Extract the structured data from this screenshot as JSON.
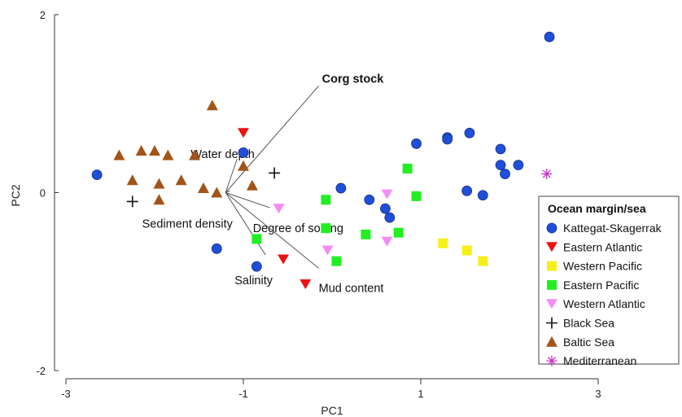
{
  "chart_data": {
    "type": "scatter",
    "xlabel": "PC1",
    "ylabel": "PC2",
    "xlim": [
      -3.0,
      3.0
    ],
    "ylim": [
      -2.0,
      2.0
    ],
    "xticks": [
      -3,
      -1,
      1,
      3
    ],
    "yticks": [
      -2,
      0,
      2
    ],
    "grid": false,
    "legend": {
      "title": "Ocean margin/sea",
      "placement": "right"
    },
    "series": [
      {
        "name": "Kattegat-Skagerrak",
        "marker": "circle",
        "color": "#1f4fd8",
        "points": [
          [
            -2.65,
            0.2
          ],
          [
            -1.0,
            0.45
          ],
          [
            -1.3,
            -0.63
          ],
          [
            -0.85,
            -0.83
          ],
          [
            0.1,
            0.05
          ],
          [
            0.42,
            -0.08
          ],
          [
            0.6,
            -0.18
          ],
          [
            0.65,
            -0.28
          ],
          [
            0.95,
            0.55
          ],
          [
            1.3,
            0.62
          ],
          [
            1.3,
            0.6
          ],
          [
            1.55,
            0.67
          ],
          [
            1.52,
            0.02
          ],
          [
            1.7,
            -0.03
          ],
          [
            1.9,
            0.49
          ],
          [
            1.9,
            0.31
          ],
          [
            1.95,
            0.21
          ],
          [
            2.1,
            0.31
          ],
          [
            2.45,
            1.75
          ]
        ]
      },
      {
        "name": "Eastern Atlantic",
        "marker": "triangle-down",
        "color": "#ee1111",
        "points": [
          [
            -1.0,
            0.67
          ],
          [
            -0.55,
            -0.75
          ],
          [
            -0.3,
            -1.03
          ]
        ]
      },
      {
        "name": "Western Pacific",
        "marker": "square",
        "color": "#f5f01a",
        "points": [
          [
            1.25,
            -0.57
          ],
          [
            1.52,
            -0.65
          ],
          [
            1.7,
            -0.77
          ]
        ]
      },
      {
        "name": "Eastern Pacific",
        "marker": "square",
        "color": "#22ee22",
        "points": [
          [
            -0.85,
            -0.52
          ],
          [
            -0.07,
            -0.08
          ],
          [
            -0.07,
            -0.4
          ],
          [
            0.05,
            -0.77
          ],
          [
            0.38,
            -0.47
          ],
          [
            0.75,
            -0.45
          ],
          [
            0.85,
            0.27
          ],
          [
            0.95,
            -0.04
          ]
        ]
      },
      {
        "name": "Western Atlantic",
        "marker": "triangle-down",
        "color": "#f58cf5",
        "points": [
          [
            -0.6,
            -0.18
          ],
          [
            -0.05,
            -0.65
          ],
          [
            0.62,
            -0.02
          ],
          [
            0.62,
            -0.55
          ]
        ]
      },
      {
        "name": "Black Sea",
        "marker": "plus",
        "color": "#111111",
        "points": [
          [
            -2.25,
            -0.1
          ],
          [
            -0.65,
            0.22
          ]
        ]
      },
      {
        "name": "Baltic Sea",
        "marker": "triangle-up",
        "color": "#a35418",
        "points": [
          [
            -2.4,
            0.42
          ],
          [
            -2.15,
            0.47
          ],
          [
            -2.0,
            0.47
          ],
          [
            -1.85,
            0.42
          ],
          [
            -1.7,
            0.14
          ],
          [
            -1.55,
            0.42
          ],
          [
            -2.25,
            0.14
          ],
          [
            -1.95,
            0.1
          ],
          [
            -1.45,
            0.05
          ],
          [
            -1.3,
            0.0
          ],
          [
            -1.95,
            -0.08
          ],
          [
            -1.35,
            0.98
          ],
          [
            -1.0,
            0.3
          ],
          [
            -0.9,
            0.08
          ]
        ]
      },
      {
        "name": "Mediterranean",
        "marker": "asterisk",
        "color": "#c833c8",
        "points": [
          [
            2.42,
            0.21
          ]
        ]
      }
    ],
    "vectors": [
      {
        "label": "Corg stock",
        "bold": true,
        "end": [
          -0.15,
          1.2
        ]
      },
      {
        "label": "Water depth",
        "bold": false,
        "end": [
          -1.07,
          0.38
        ]
      },
      {
        "label": "Sediment density",
        "bold": false,
        "end": [
          -1.15,
          0.02
        ]
      },
      {
        "label": "Degree of sorting",
        "bold": false,
        "end": [
          -0.7,
          -0.17
        ]
      },
      {
        "label": "Salinity",
        "bold": false,
        "end": [
          -0.75,
          -0.7
        ]
      },
      {
        "label": "Mud content",
        "bold": false,
        "end": [
          -0.15,
          -0.85
        ]
      }
    ],
    "vector_origin": [
      -1.2,
      0.0
    ]
  }
}
